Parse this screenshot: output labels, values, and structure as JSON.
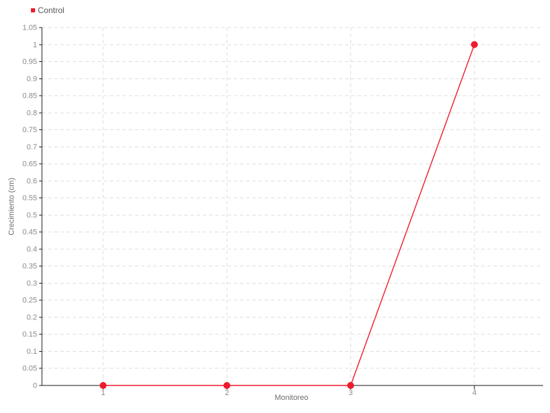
{
  "page": {
    "background": "#ffffff"
  },
  "colors": {
    "series": "#ee1b2d",
    "grid": "#dedede",
    "axis": "#1a1a1a",
    "tick_text": "#8a8a8a",
    "title_text": "#6e6e6e",
    "legend_text": "#53565a"
  },
  "chart_data": {
    "type": "line",
    "title": "",
    "xlabel": "Monitoreo",
    "ylabel": "Crecimiento (cm)",
    "categories": [
      "1",
      "2",
      "3",
      "4"
    ],
    "series": [
      {
        "name": "Control",
        "color": "#ee1b2d",
        "values": [
          0,
          0,
          0,
          1
        ]
      }
    ],
    "ylim": [
      0,
      1.05
    ],
    "ytick_step": 0.05,
    "grid": "dashed",
    "legend_position": "top-left",
    "marker": "circle"
  }
}
